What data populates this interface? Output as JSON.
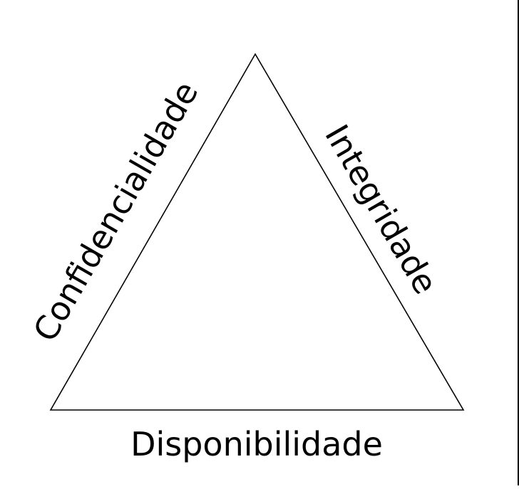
{
  "diagram": {
    "type": "triangle",
    "labels": {
      "left_side": "Confidencialidade",
      "right_side": "Integridade",
      "bottom_side": "Disponibilidade"
    },
    "stroke_color": "#000000",
    "background_color": "#ffffff"
  }
}
